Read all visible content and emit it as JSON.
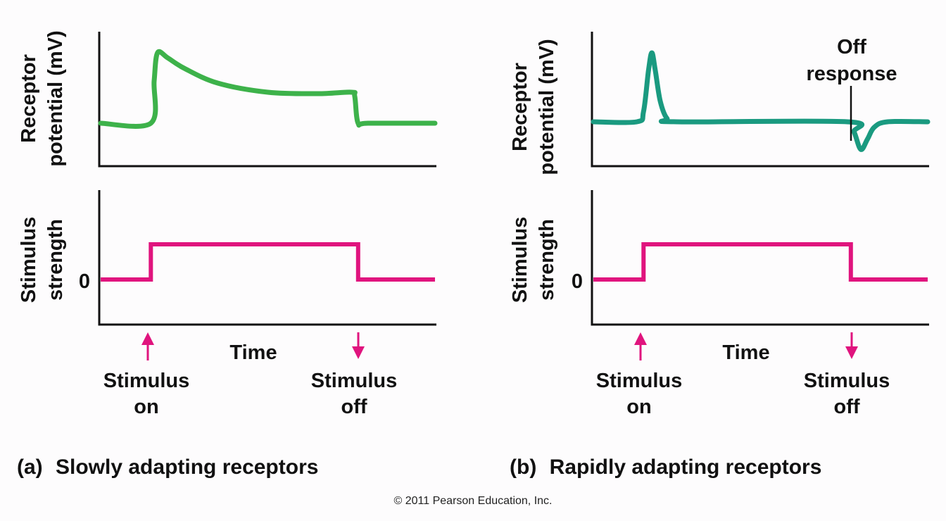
{
  "colors": {
    "slow_response": "#3db24a",
    "rapid_response": "#1a9a80",
    "stimulus": "#e0147e",
    "axis": "#111111"
  },
  "panels": [
    {
      "letter": "(a)",
      "caption": "Slowly adapting receptors",
      "top_ylabel_line1": "Receptor",
      "top_ylabel_line2": "potential (mV)",
      "bottom_ylabel_line1": "Stimulus",
      "bottom_ylabel_line2": "strength",
      "zero_tick": "0",
      "xlabel": "Time",
      "marker_on_line1": "Stimulus",
      "marker_on_line2": "on",
      "marker_off_line1": "Stimulus",
      "marker_off_line2": "off"
    },
    {
      "letter": "(b)",
      "caption": "Rapidly adapting receptors",
      "top_ylabel_line1": "Receptor",
      "top_ylabel_line2": "potential (mV)",
      "bottom_ylabel_line1": "Stimulus",
      "bottom_ylabel_line2": "strength",
      "zero_tick": "0",
      "xlabel": "Time",
      "marker_on_line1": "Stimulus",
      "marker_on_line2": "on",
      "marker_off_line1": "Stimulus",
      "marker_off_line2": "off",
      "annotation_line1": "Off",
      "annotation_line2": "response"
    }
  ],
  "copyright": "© 2011 Pearson Education, Inc.",
  "chart_data": [
    {
      "type": "line",
      "panel": "a",
      "ylabel": "Receptor potential (mV)",
      "xlabel": "Time",
      "series": [
        {
          "x": [
            0,
            15,
            16,
            17,
            20,
            25,
            35,
            50,
            65,
            75,
            76,
            77,
            80,
            100
          ],
          "y": [
            0,
            0,
            0.6,
            1.0,
            0.93,
            0.78,
            0.57,
            0.44,
            0.42,
            0.44,
            0.38,
            0,
            0,
            0
          ]
        }
      ]
    },
    {
      "type": "line",
      "panel": "a",
      "ylabel": "Stimulus strength",
      "xlabel": "Time",
      "yticks": [
        "0"
      ],
      "series": [
        {
          "x": [
            0,
            15,
            15,
            77,
            77,
            100
          ],
          "y": [
            0,
            0,
            1,
            1,
            0,
            0
          ]
        }
      ]
    },
    {
      "type": "line",
      "panel": "b",
      "ylabel": "Receptor potential (mV)",
      "xlabel": "Time",
      "series": [
        {
          "x": [
            0,
            13,
            15,
            16.5,
            17.5,
            18.5,
            20,
            22,
            25,
            76,
            78,
            80,
            82,
            84,
            88,
            100
          ],
          "y": [
            0,
            0,
            0.15,
            0.75,
            1.0,
            0.75,
            0.3,
            0.05,
            0,
            0,
            -0.15,
            -0.4,
            -0.25,
            -0.08,
            0,
            0
          ]
        }
      ]
    },
    {
      "type": "line",
      "panel": "b",
      "ylabel": "Stimulus strength",
      "xlabel": "Time",
      "yticks": [
        "0"
      ],
      "series": [
        {
          "x": [
            0,
            15,
            15,
            77,
            77,
            100
          ],
          "y": [
            0,
            0,
            1,
            1,
            0,
            0
          ]
        }
      ]
    }
  ]
}
